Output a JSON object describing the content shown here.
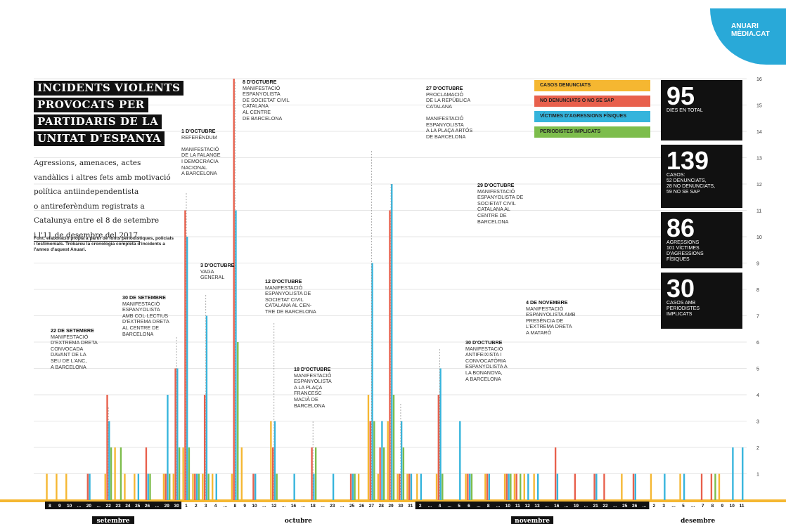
{
  "logo": {
    "text": "ANUARI\nMÈDIA.CAT"
  },
  "title_lines": [
    "INCIDENTS VIOLENTS",
    "PROVOCATS PER",
    "PARTIDARIS DE LA",
    "UNITAT D'ESPANYA"
  ],
  "description": [
    "Agressions, amenaces, actes",
    "vandàlics i altres fets amb motivació",
    "política antiindependentista",
    "o antireferèndum registrats a",
    "Catalunya entre el 8 de setembre",
    "i l'11 de desembre del 2017."
  ],
  "source_note": "Font: elaboració pròpia a partir de fonts periodístiques, policials i testimonials. Trobareu la cronologia completa d'incidents a l'annex d'aquest Anuari.",
  "legend": [
    {
      "label": "CASOS DENUNCIATS",
      "color": "#f5b731"
    },
    {
      "label": "NO DENUNCIATS O NO SE SAP",
      "color": "#e8604c"
    },
    {
      "label": "VÍCTIMES D'AGRESSIONS FÍSIQUES",
      "color": "#35b4dc"
    },
    {
      "label": "PERIODISTES IMPLICATS",
      "color": "#7dbd4c"
    }
  ],
  "stats": [
    {
      "number": "95",
      "label": "DIES EN TOTAL"
    },
    {
      "number": "139",
      "label": "CASOS:\n52 DENUNCIATS,\n28 NO DENUNCIATS,\n59 NO SE SAP"
    },
    {
      "number": "86",
      "label": "AGRESSIONS\n101 VÍCTIMES\nD'AGRESSIONS\nFÍSIQUES"
    },
    {
      "number": "30",
      "label": "CASOS AMB\nPERIODISTES\nIMPLICATS"
    }
  ],
  "annotations": [
    {
      "date": "22 DE SETEMBRE",
      "text": "MANIFESTACIÓ\nD'EXTREMA DRETA\nCONVOCADA\nDAVANT DE LA\nSEU DE L'ANC,\nA BARCELONA"
    },
    {
      "date": "30 DE SETEMBRE",
      "text": "MANIFESTACIÓ\nESPANYOLISTA\nAMB COL·LECTIUS\nD'EXTREMA DRETA\nAL CENTRE DE\nBARCELONA"
    },
    {
      "date": "1 D'OCTUBRE",
      "text": "REFERÈNDUM\n\nMANIFESTACIÓ\nDE LA FALANGE\nI DEMOCRACIA\nNACIONAL\nA BARCELONA"
    },
    {
      "date": "3 D'OCTUBRE",
      "text": "VAGA\nGENERAL"
    },
    {
      "date": "8 D'OCTUBRE",
      "text": "MANIFESTACIÓ\nESPANYOLISTA\nDE SOCIETAT CIVIL\nCATALANA\nAL CENTRE\nDE BARCELONA"
    },
    {
      "date": "12 D'OCTUBRE",
      "text": "MANIFESTACIÓ\nESPANYOLISTA DE\nSOCIETAT CIVIL\nCATALANA AL CEN-\nTRE DE BARCELONA"
    },
    {
      "date": "18 D'OCTUBRE",
      "text": "MANIFESTACIÓ\nESPANYOLISTA\nA LA PLAÇA\nFRANCESC\nMACIÀ DE\nBARCELONA"
    },
    {
      "date": "27 D'OCTUBRE",
      "text": "PROCLAMACIÓ\nDE LA REPÚBLICA\nCATALANA\n\nMANIFESTACIÓ\nESPANYOLISTA\nA LA PLAÇA ARTÓS\nDE BARCELONA"
    },
    {
      "date": "29 D'OCTUBRE",
      "text": "MANIFESTACIÓ\nESPANYOLISTA DE\nSOCIETAT CIVIL\nCATALANA AL\nCENTRE DE\nBARCELONA"
    },
    {
      "date": "30 D'OCTUBRE",
      "text": "MANIFESTACIÓ\nANTIFEIXISTA I\nCONVOCATÒRIA\nESPANYOLISTA A\nLA BONANOVA,\nA BARCELONA"
    },
    {
      "date": "4 DE NOVEMBRE",
      "text": "MANIFESTACIÓ\nESPANYOLISTA AMB\nPRESÈNCIA DE\nL'EXTREMA DRETA\nA MATARÓ"
    }
  ],
  "chart_data": {
    "type": "bar",
    "ylim": [
      0,
      16
    ],
    "y_ticks": [
      1,
      2,
      3,
      4,
      5,
      6,
      7,
      8,
      9,
      10,
      11,
      12,
      13,
      14,
      15,
      16
    ],
    "months": [
      "setembre",
      "octubre",
      "novembre",
      "desembre"
    ],
    "series": [
      {
        "name": "CASOS DENUNCIATS",
        "color": "#f5b731"
      },
      {
        "name": "NO DENUNCIATS O NO SE SAP",
        "color": "#e8604c"
      },
      {
        "name": "VÍCTIMES D'AGRESSIONS FÍSIQUES",
        "color": "#35b4dc"
      },
      {
        "name": "PERIODISTES IMPLICATS",
        "color": "#7dbd4c"
      }
    ],
    "days": [
      {
        "label": "8",
        "month": 0,
        "values": [
          1,
          0,
          0,
          0
        ]
      },
      {
        "label": "9",
        "month": 0,
        "values": [
          1,
          0,
          0,
          0
        ]
      },
      {
        "label": "10",
        "month": 0,
        "values": [
          1,
          0,
          0,
          0
        ]
      },
      {
        "label": "...",
        "month": 0,
        "values": [
          0,
          0,
          0,
          0
        ]
      },
      {
        "label": "20",
        "month": 0,
        "values": [
          0,
          1,
          1,
          0
        ]
      },
      {
        "label": "...",
        "month": 0,
        "values": [
          0,
          0,
          0,
          0
        ]
      },
      {
        "label": "22",
        "month": 0,
        "values": [
          1,
          4,
          3,
          2
        ]
      },
      {
        "label": "23",
        "month": 0,
        "values": [
          2,
          0,
          0,
          2
        ]
      },
      {
        "label": "24",
        "month": 0,
        "values": [
          1,
          0,
          0,
          0
        ]
      },
      {
        "label": "25",
        "month": 0,
        "values": [
          1,
          0,
          1,
          0
        ]
      },
      {
        "label": "26",
        "month": 0,
        "values": [
          0,
          2,
          1,
          1
        ]
      },
      {
        "label": "...",
        "month": 0,
        "values": [
          0,
          0,
          0,
          0
        ]
      },
      {
        "label": "29",
        "month": 0,
        "values": [
          1,
          1,
          4,
          1
        ]
      },
      {
        "label": "30",
        "month": 0,
        "values": [
          1,
          5,
          5,
          2
        ]
      },
      {
        "label": "1",
        "month": 1,
        "values": [
          2,
          11,
          10,
          2
        ]
      },
      {
        "label": "2",
        "month": 1,
        "values": [
          1,
          1,
          1,
          1
        ]
      },
      {
        "label": "3",
        "month": 1,
        "values": [
          1,
          4,
          7,
          1
        ]
      },
      {
        "label": "4",
        "month": 1,
        "values": [
          1,
          0,
          1,
          0
        ]
      },
      {
        "label": "...",
        "month": 1,
        "values": [
          0,
          0,
          0,
          0
        ]
      },
      {
        "label": "8",
        "month": 1,
        "values": [
          1,
          16,
          11,
          6
        ]
      },
      {
        "label": "9",
        "month": 1,
        "values": [
          2,
          0,
          0,
          0
        ]
      },
      {
        "label": "10",
        "month": 1,
        "values": [
          0,
          1,
          1,
          0
        ]
      },
      {
        "label": "...",
        "month": 1,
        "values": [
          0,
          0,
          0,
          0
        ]
      },
      {
        "label": "12",
        "month": 1,
        "values": [
          3,
          2,
          3,
          1
        ]
      },
      {
        "label": "...",
        "month": 1,
        "values": [
          0,
          0,
          0,
          0
        ]
      },
      {
        "label": "16",
        "month": 1,
        "values": [
          0,
          0,
          1,
          0
        ]
      },
      {
        "label": "...",
        "month": 1,
        "values": [
          0,
          0,
          0,
          0
        ]
      },
      {
        "label": "18",
        "month": 1,
        "values": [
          0,
          2,
          1,
          2
        ]
      },
      {
        "label": "...",
        "month": 1,
        "values": [
          0,
          0,
          0,
          0
        ]
      },
      {
        "label": "23",
        "month": 1,
        "values": [
          0,
          0,
          1,
          0
        ]
      },
      {
        "label": "...",
        "month": 1,
        "values": [
          0,
          0,
          0,
          0
        ]
      },
      {
        "label": "25",
        "month": 1,
        "values": [
          0,
          1,
          1,
          1
        ]
      },
      {
        "label": "26",
        "month": 1,
        "values": [
          1,
          0,
          0,
          0
        ]
      },
      {
        "label": "27",
        "month": 1,
        "values": [
          4,
          3,
          9,
          3
        ]
      },
      {
        "label": "28",
        "month": 1,
        "values": [
          1,
          2,
          3,
          2
        ]
      },
      {
        "label": "29",
        "month": 1,
        "values": [
          3,
          11,
          12,
          4
        ]
      },
      {
        "label": "30",
        "month": 1,
        "values": [
          1,
          1,
          3,
          2
        ]
      },
      {
        "label": "31",
        "month": 1,
        "values": [
          1,
          1,
          1,
          0
        ]
      },
      {
        "label": "2",
        "month": 2,
        "values": [
          1,
          0,
          1,
          0
        ]
      },
      {
        "label": "...",
        "month": 2,
        "values": [
          0,
          0,
          0,
          0
        ]
      },
      {
        "label": "4",
        "month": 2,
        "values": [
          1,
          4,
          5,
          1
        ]
      },
      {
        "label": "...",
        "month": 2,
        "values": [
          0,
          0,
          0,
          0
        ]
      },
      {
        "label": "5",
        "month": 2,
        "values": [
          0,
          0,
          3,
          0
        ]
      },
      {
        "label": "6",
        "month": 2,
        "values": [
          1,
          1,
          1,
          1
        ]
      },
      {
        "label": "...",
        "month": 2,
        "values": [
          0,
          0,
          0,
          0
        ]
      },
      {
        "label": "8",
        "month": 2,
        "values": [
          1,
          1,
          1,
          0
        ]
      },
      {
        "label": "...",
        "month": 2,
        "values": [
          0,
          0,
          0,
          0
        ]
      },
      {
        "label": "10",
        "month": 2,
        "values": [
          1,
          1,
          1,
          1
        ]
      },
      {
        "label": "11",
        "month": 2,
        "values": [
          1,
          1,
          0,
          1
        ]
      },
      {
        "label": "12",
        "month": 2,
        "values": [
          1,
          0,
          1,
          0
        ]
      },
      {
        "label": "13",
        "month": 2,
        "values": [
          1,
          0,
          1,
          0
        ]
      },
      {
        "label": "...",
        "month": 2,
        "values": [
          0,
          0,
          0,
          0
        ]
      },
      {
        "label": "16",
        "month": 2,
        "values": [
          0,
          2,
          1,
          0
        ]
      },
      {
        "label": "...",
        "month": 2,
        "values": [
          0,
          0,
          0,
          0
        ]
      },
      {
        "label": "19",
        "month": 2,
        "values": [
          0,
          1,
          0,
          0
        ]
      },
      {
        "label": "...",
        "month": 2,
        "values": [
          0,
          0,
          0,
          0
        ]
      },
      {
        "label": "21",
        "month": 2,
        "values": [
          0,
          1,
          1,
          0
        ]
      },
      {
        "label": "22",
        "month": 2,
        "values": [
          0,
          1,
          0,
          0
        ]
      },
      {
        "label": "...",
        "month": 2,
        "values": [
          0,
          0,
          0,
          0
        ]
      },
      {
        "label": "25",
        "month": 2,
        "values": [
          1,
          0,
          0,
          0
        ]
      },
      {
        "label": "26",
        "month": 2,
        "values": [
          0,
          1,
          1,
          0
        ]
      },
      {
        "label": "...",
        "month": 2,
        "values": [
          0,
          0,
          0,
          0
        ]
      },
      {
        "label": "2",
        "month": 3,
        "values": [
          1,
          0,
          0,
          0
        ]
      },
      {
        "label": "3",
        "month": 3,
        "values": [
          0,
          0,
          1,
          0
        ]
      },
      {
        "label": "...",
        "month": 3,
        "values": [
          0,
          0,
          0,
          0
        ]
      },
      {
        "label": "5",
        "month": 3,
        "values": [
          1,
          0,
          1,
          0
        ]
      },
      {
        "label": "...",
        "month": 3,
        "values": [
          0,
          0,
          0,
          0
        ]
      },
      {
        "label": "7",
        "month": 3,
        "values": [
          0,
          1,
          0,
          0
        ]
      },
      {
        "label": "8",
        "month": 3,
        "values": [
          0,
          1,
          0,
          1
        ]
      },
      {
        "label": "9",
        "month": 3,
        "values": [
          1,
          0,
          0,
          0
        ]
      },
      {
        "label": "10",
        "month": 3,
        "values": [
          0,
          0,
          2,
          0
        ]
      },
      {
        "label": "11",
        "month": 3,
        "values": [
          0,
          0,
          2,
          0
        ]
      }
    ]
  }
}
